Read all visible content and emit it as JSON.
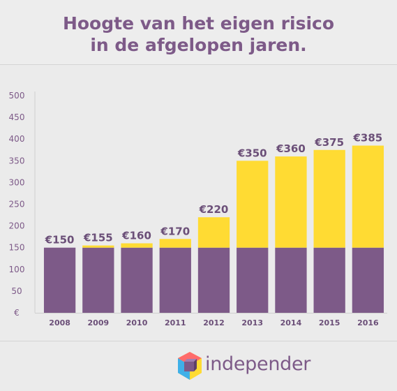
{
  "header": {
    "title_line1": "Hoogte van het eigen risico",
    "title_line2": "in de afgelopen jaren."
  },
  "chart_data": {
    "type": "bar",
    "stacked": true,
    "categories": [
      "2008",
      "2009",
      "2010",
      "2011",
      "2012",
      "2013",
      "2014",
      "2015",
      "2016"
    ],
    "totals": [
      150,
      155,
      160,
      170,
      220,
      350,
      360,
      375,
      385
    ],
    "series": [
      {
        "values": [
          150,
          150,
          150,
          150,
          150,
          150,
          150,
          150,
          150
        ],
        "color": "#7d5a88"
      },
      {
        "values": [
          0,
          5,
          10,
          20,
          70,
          200,
          210,
          225,
          235
        ],
        "color": "#ffdb33"
      }
    ],
    "data_labels": [
      "€150",
      "€155",
      "€160",
      "€170",
      "€220",
      "€350",
      "€360",
      "€375",
      "€385"
    ],
    "yticks": [
      "€",
      "50",
      "100",
      "150",
      "200",
      "250",
      "300",
      "350",
      "400",
      "450",
      "500"
    ],
    "ylim": [
      0,
      500
    ],
    "grid": false
  },
  "footer": {
    "brand": "independer"
  }
}
